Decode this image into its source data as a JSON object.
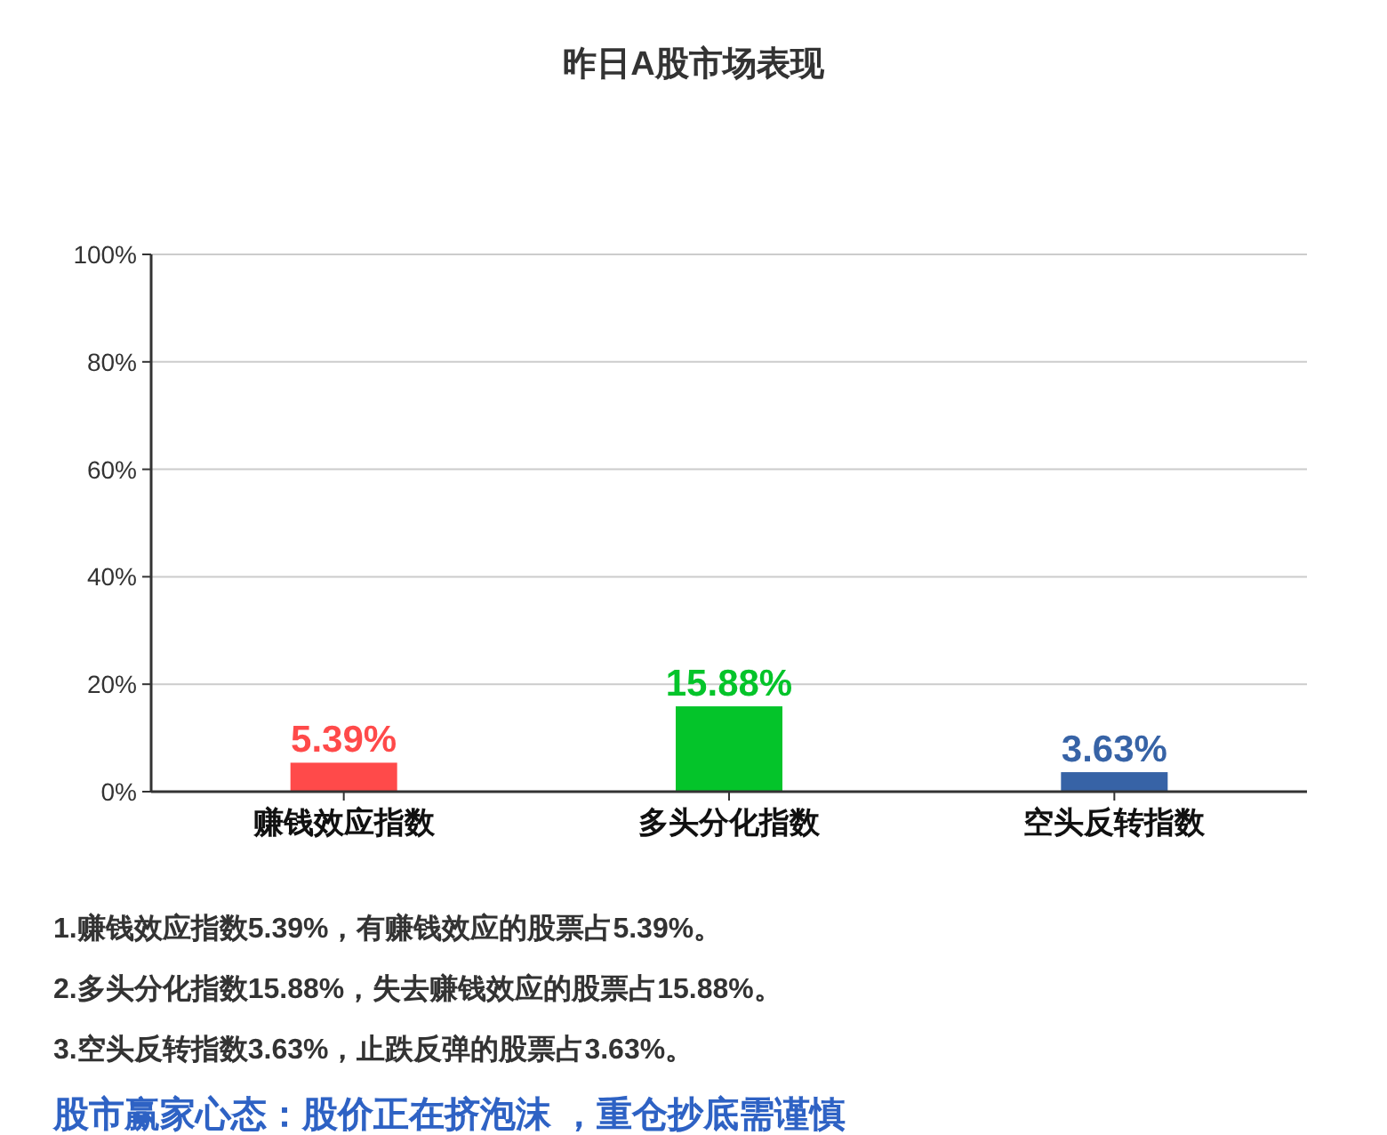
{
  "chart_data": {
    "type": "bar",
    "title": "昨日A股市场表现",
    "categories": [
      "赚钱效应指数",
      "多头分化指数",
      "空头反转指数"
    ],
    "values": [
      5.39,
      15.88,
      3.63
    ],
    "colors": [
      "#ff4a4a",
      "#04c42a",
      "#3763a6"
    ],
    "ylim": [
      0,
      100
    ],
    "yticks": [
      {
        "value": 0,
        "label": "0%"
      },
      {
        "value": 20,
        "label": "20%"
      },
      {
        "value": 40,
        "label": "40%"
      },
      {
        "value": 60,
        "label": "60%"
      },
      {
        "value": 80,
        "label": "80%"
      },
      {
        "value": 100,
        "label": "100%"
      }
    ],
    "grid": "y",
    "value_labels": [
      "5.39%",
      "15.88%",
      "3.63%"
    ],
    "annotations": [
      "1.赚钱效应指数5.39%，有赚钱效应的股票占5.39%。",
      "2.多头分化指数15.88%，失去赚钱效应的股票占15.88%。",
      "3.空头反转指数3.63%，止跌反弹的股票占3.63%。",
      "股市赢家心态：股价正在挤泡沫 ，重仓抄底需谨慎"
    ]
  }
}
